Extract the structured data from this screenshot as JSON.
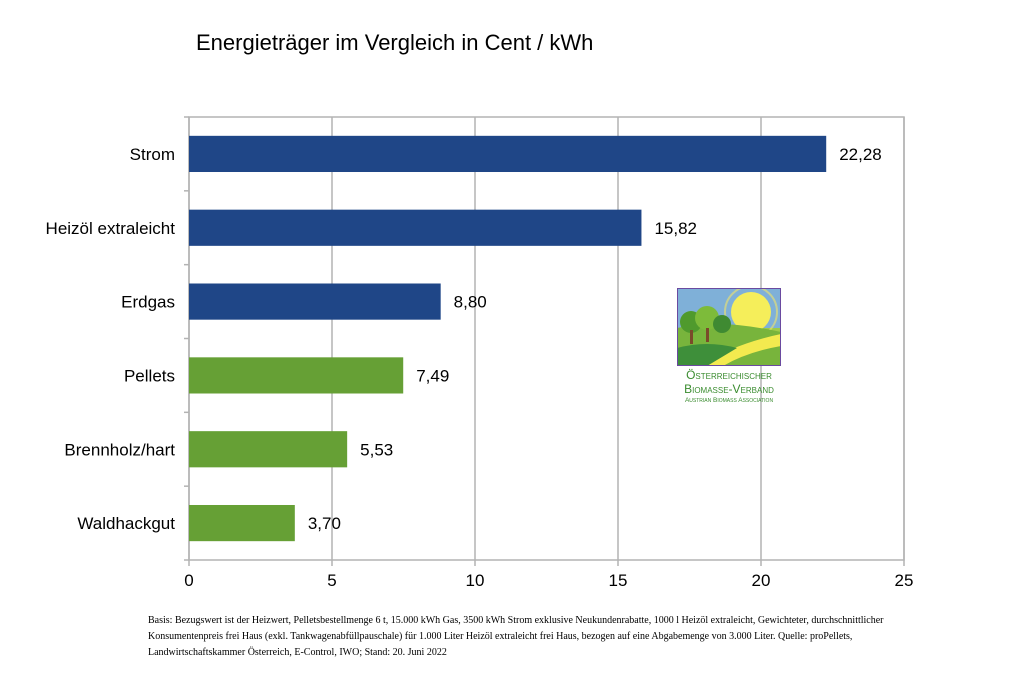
{
  "chart_data": {
    "type": "bar",
    "orientation": "horizontal",
    "title": "Energieträger im Vergleich in Cent / kWh",
    "categories": [
      "Strom",
      "Heizöl extraleicht",
      "Erdgas",
      "Pellets",
      "Brennholz/hart",
      "Waldhackgut"
    ],
    "values": [
      22.28,
      15.82,
      8.8,
      7.49,
      5.53,
      3.7
    ],
    "value_labels": [
      "22,28",
      "15,82",
      "8,80",
      "7,49",
      "5,53",
      "3,70"
    ],
    "colors": [
      "#1f4687",
      "#1f4687",
      "#1f4687",
      "#66a035",
      "#66a035",
      "#66a035"
    ],
    "xlim": [
      0,
      25
    ],
    "x_ticks": [
      0,
      5,
      10,
      15,
      20,
      25
    ],
    "x_tick_labels": [
      "0",
      "5",
      "10",
      "15",
      "20",
      "25"
    ],
    "grid": "vertical",
    "xlabel": "",
    "ylabel": ""
  },
  "logo": {
    "line1": "Österreichischer",
    "line2": "Biomasse-Verband",
    "line3": "Austrian Biomass Association"
  },
  "footnote": {
    "line1": "Basis: Bezugswert ist der Heizwert, Pelletsbestellmenge 6 t, 15.000 kWh Gas, 3500 kWh Strom exklusive Neukundenrabatte, 1000 l Heizöl extraleicht, Gewichteter, durchschnittlicher",
    "line2": "Konsumentenpreis frei Haus (exkl. Tankwagenabfüllpauschale) für 1.000 Liter Heizöl extraleicht frei Haus, bezogen auf eine Abgabemenge von 3.000 Liter. Quelle: proPellets,",
    "line3": "Landwirtschaftskammer Österreich, E-Control, IWO; Stand: 20. Juni 2022"
  }
}
